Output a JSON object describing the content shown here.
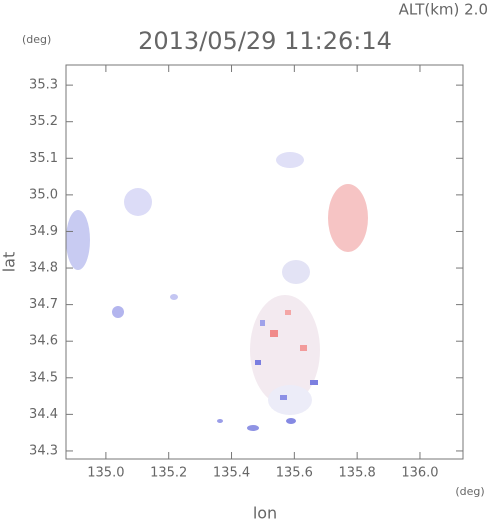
{
  "chart_data": {
    "type": "map",
    "title": "2013/05/29 11:26:14",
    "subtitle": "ALT(km) 2.0",
    "y_unit": "(deg)",
    "x_unit": "(deg)",
    "xlabel": "lon",
    "ylabel": "lat",
    "xlim": [
      134.873,
      136.137
    ],
    "ylim": [
      34.278,
      35.355
    ],
    "xticks": [
      {
        "value": 135.0,
        "label": "135.0"
      },
      135.2,
      135.4,
      135.6,
      135.8,
      {
        "value": 136.0,
        "label": "136.0"
      }
    ],
    "yticks": [
      34.3,
      34.4,
      34.5,
      34.6,
      34.7,
      34.8,
      34.9,
      {
        "value": 35.0,
        "label": "35.0"
      },
      35.1,
      35.2,
      35.3
    ]
  }
}
